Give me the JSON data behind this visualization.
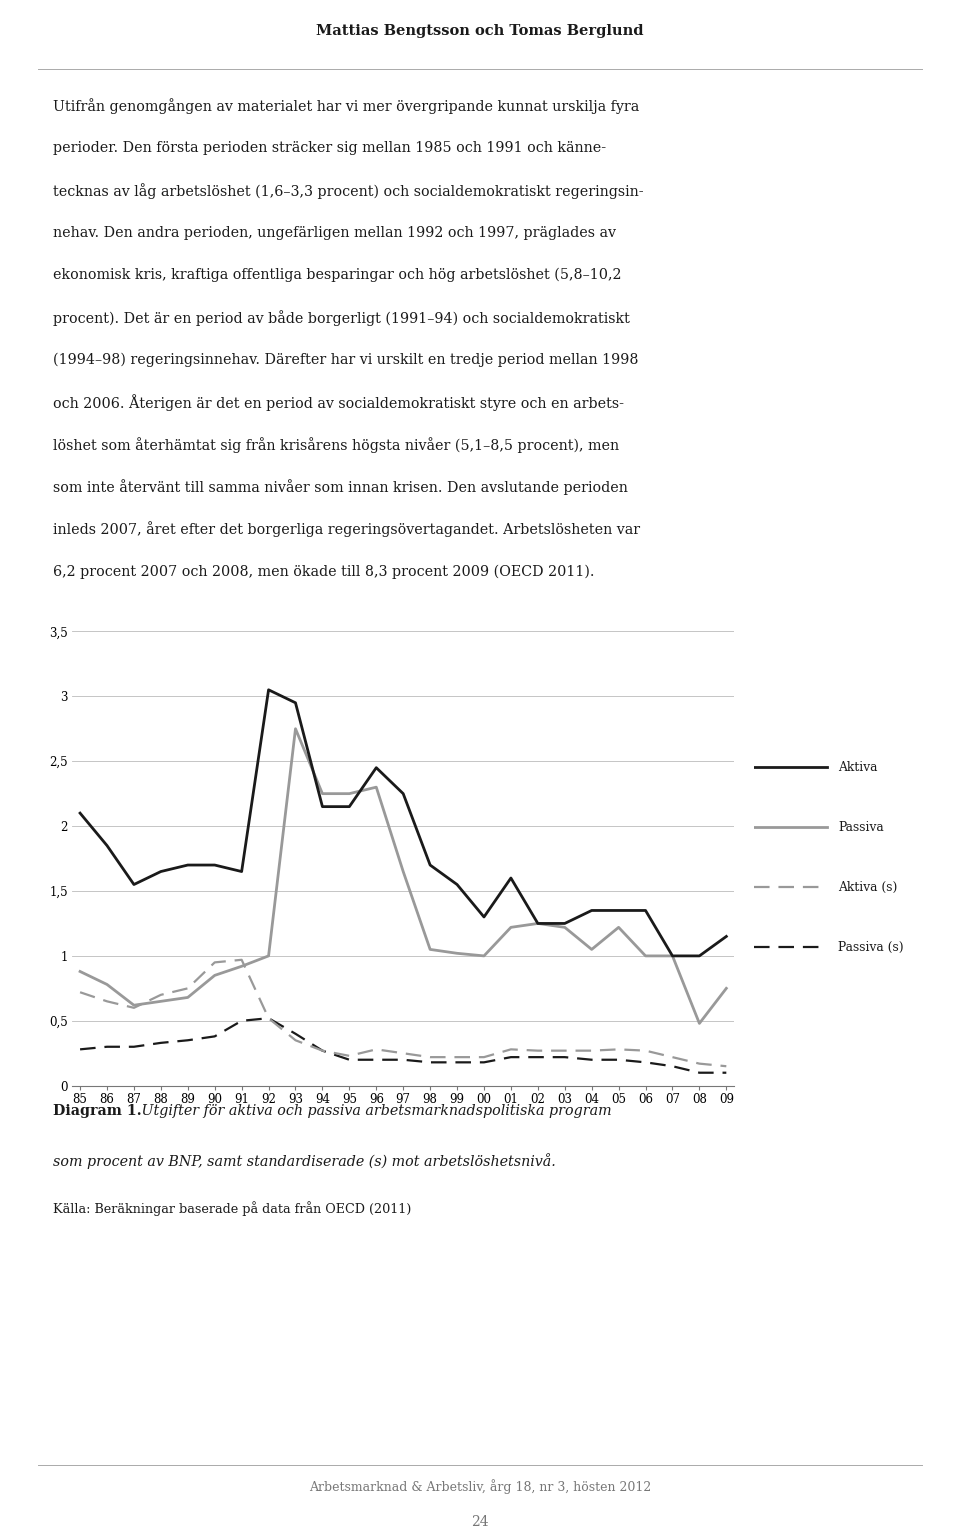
{
  "header": "Mattias Bengtsson och Tomas Berglund",
  "body_lines": [
    "Utifrån genomgången av materialet har vi mer övergripande kunnat urskilja fyra",
    "perioder. Den första perioden sträcker sig mellan 1985 och 1991 och känne-",
    "tecknas av låg arbetslöshet (1,6–3,3 procent) och socialdemokratiskt regeringsin-",
    "nehav. Den andra perioden, ungefärligen mellan 1992 och 1997, präglades av",
    "ekonomisk kris, kraftiga offentliga besparingar och hög arbetslöshet (5,8–10,2",
    "procent). Det är en period av både borgerligt (1991–94) och socialdemokratiskt",
    "(1994–98) regeringsinnehav. Därefter har vi urskilt en tredje period mellan 1998",
    "och 2006. Återigen är det en period av socialdemokratiskt styre och en arbets-",
    "löshet som återhämtat sig från krisårens högsta nivåer (5,1–8,5 procent), men",
    "som inte återvänt till samma nivåer som innan krisen. Den avslutande perioden",
    "inleds 2007, året efter det borgerliga regeringsövertagandet. Arbetslösheten var",
    "6,2 procent 2007 och 2008, men ökade till 8,3 procent 2009 (OECD 2011)."
  ],
  "aktiva": [
    2.1,
    1.85,
    1.55,
    1.65,
    1.7,
    1.7,
    1.65,
    3.05,
    2.95,
    2.15,
    2.15,
    2.45,
    2.25,
    1.7,
    1.55,
    1.3,
    1.6,
    1.25,
    1.25,
    1.35,
    1.35,
    1.35,
    1.0,
    1.0,
    1.15
  ],
  "passiva": [
    0.88,
    0.78,
    0.62,
    0.65,
    0.68,
    0.85,
    0.92,
    1.0,
    2.75,
    2.25,
    2.25,
    2.3,
    1.65,
    1.05,
    1.02,
    1.0,
    1.22,
    1.25,
    1.22,
    1.05,
    1.22,
    1.0,
    1.0,
    0.48,
    0.75
  ],
  "aktiva_s": [
    0.72,
    0.65,
    0.6,
    0.7,
    0.75,
    0.95,
    0.97,
    0.52,
    0.35,
    0.27,
    0.23,
    0.28,
    0.25,
    0.22,
    0.22,
    0.22,
    0.28,
    0.27,
    0.27,
    0.27,
    0.28,
    0.27,
    0.22,
    0.17,
    0.15
  ],
  "passiva_s": [
    0.28,
    0.3,
    0.3,
    0.33,
    0.35,
    0.38,
    0.5,
    0.52,
    0.4,
    0.27,
    0.2,
    0.2,
    0.2,
    0.18,
    0.18,
    0.18,
    0.22,
    0.22,
    0.22,
    0.2,
    0.2,
    0.18,
    0.15,
    0.1,
    0.1
  ],
  "ylim": [
    0,
    3.5
  ],
  "yticks": [
    0,
    0.5,
    1,
    1.5,
    2,
    2.5,
    3,
    3.5
  ],
  "years_labels": [
    "85",
    "86",
    "87",
    "88",
    "89",
    "90",
    "91",
    "92",
    "93",
    "94",
    "95",
    "96",
    "97",
    "98",
    "99",
    "00",
    "01",
    "02",
    "03",
    "04",
    "05",
    "06",
    "07",
    "08",
    "09"
  ],
  "diagram_label_bold": "Diagram 1.",
  "diagram_label_italic": " Utgifter för aktiva och passiva arbetsmarknadspolitiska program",
  "diagram_label_italic2": "som procent av BNP, samt standardiserade (s) mot arbetslöshetsnivå.",
  "source_label": "Källa: Beräkningar baserade på data från OECD (2011)",
  "footer_text": "Arbetsmarknad & Arbetsliv, årg 18, nr 3, hösten 2012",
  "page_number": "24",
  "legend_aktiva": "Aktiva",
  "legend_passiva": "Passiva",
  "legend_aktiva_s": "Aktiva (s)",
  "legend_passiva_s": "Passiva (s)",
  "aktiva_color": "#1a1a1a",
  "passiva_color": "#999999",
  "aktiva_s_color": "#999999",
  "passiva_s_color": "#1a1a1a",
  "background_color": "#ffffff",
  "header_color": "#1a1a1a",
  "footer_color": "#777777"
}
